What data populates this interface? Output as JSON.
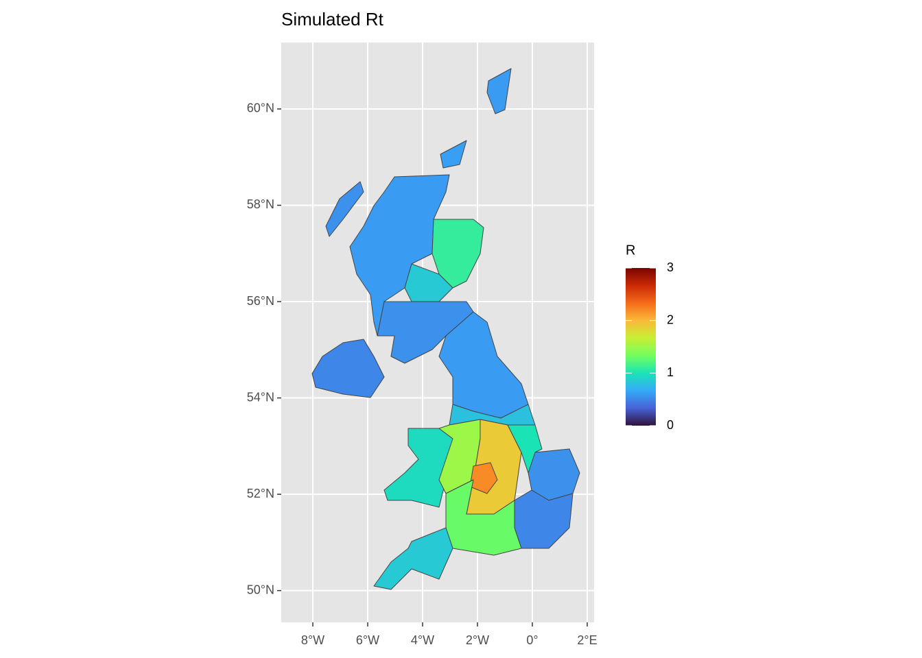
{
  "chart_data": {
    "type": "choropleth",
    "title": "Simulated Rt",
    "values": [
      0.6,
      0.55,
      0.6,
      0.62,
      1.1,
      0.85,
      0.55,
      0.5,
      0.6,
      0.8,
      0.95,
      1.5,
      1.9,
      2.2,
      0.55,
      1.0,
      0.5,
      1.3,
      0.85
    ],
    "xlim": [
      -9.15,
      2.25
    ],
    "ylim": [
      49.34,
      61.38
    ],
    "xticks": [
      {
        "value": -8,
        "label": "8°W"
      },
      {
        "value": -6,
        "label": "6°W"
      },
      {
        "value": -4,
        "label": "4°W"
      },
      {
        "value": -2,
        "label": "2°W"
      },
      {
        "value": 0,
        "label": "0°"
      },
      {
        "value": 2,
        "label": "2°E"
      }
    ],
    "yticks": [
      {
        "value": 50,
        "label": "50°N"
      },
      {
        "value": 52,
        "label": "52°N"
      },
      {
        "value": 54,
        "label": "54°N"
      },
      {
        "value": 56,
        "label": "56°N"
      },
      {
        "value": 58,
        "label": "58°N"
      },
      {
        "value": 60,
        "label": "60°N"
      }
    ],
    "grid": true,
    "legend": {
      "title": "R",
      "limits": [
        0,
        3
      ],
      "ticks": [
        0,
        1,
        2,
        3
      ],
      "colors": [
        "#30123b",
        "#4662d7",
        "#36aaf9",
        "#1ae4b6",
        "#72fe5e",
        "#c8ef34",
        "#faba39",
        "#f66b19",
        "#ca2a04",
        "#7a0403"
      ]
    }
  }
}
